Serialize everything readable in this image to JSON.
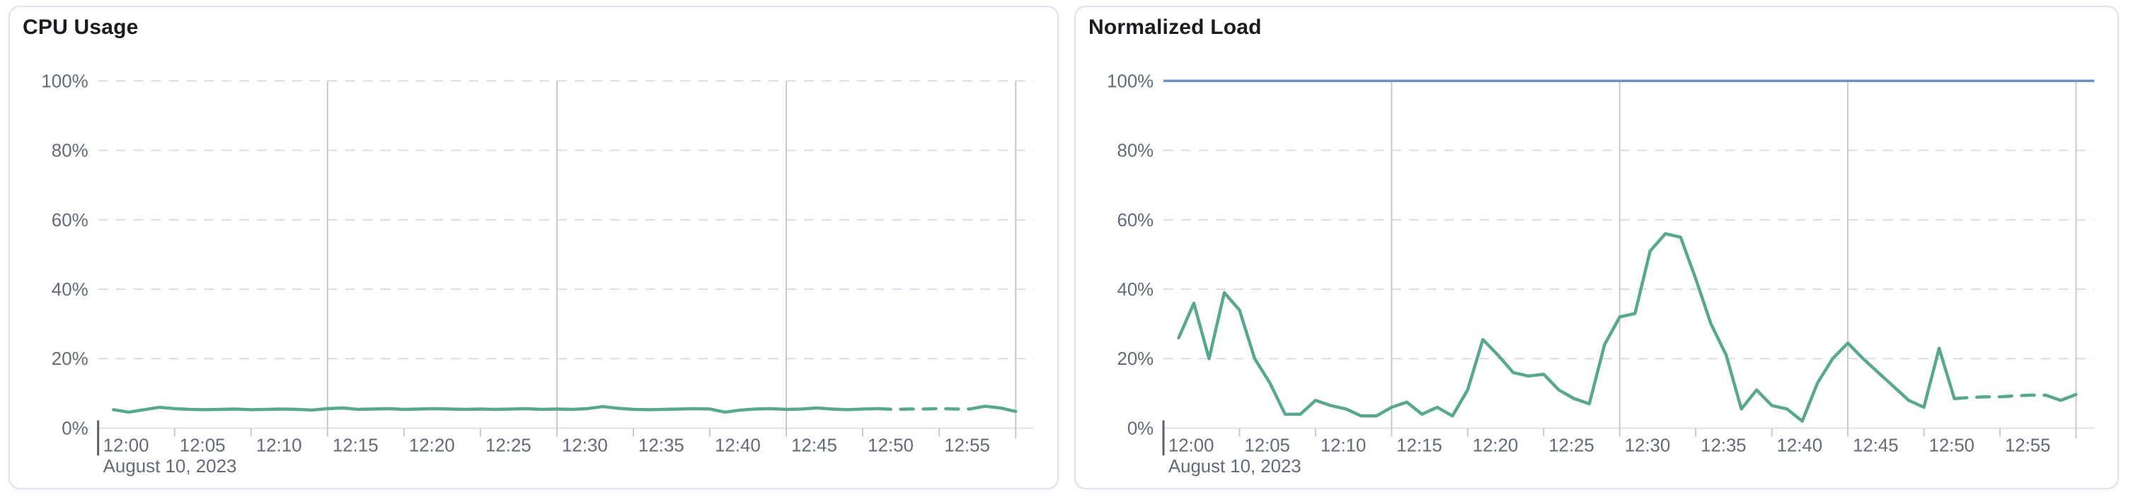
{
  "page": {
    "background": "#ffffff"
  },
  "colors": {
    "series_green": "#57A88E",
    "limit_blue": "#6A91C2",
    "grid_dashed": "#D9DDE8",
    "grid_solid": "#C6C9D0",
    "axis_line": "#E0E3EA",
    "tick": "#C6C9D0",
    "start_tick": "#5A5F6B",
    "label_text": "#646A79",
    "title_text": "#1A1C21",
    "card_border": "#DFE3EC"
  },
  "cards": [
    {
      "name": "cpu-usage",
      "title": "CPU Usage"
    },
    {
      "name": "normalized-load",
      "title": "Normalized Load"
    }
  ],
  "chart_data": [
    {
      "type": "line",
      "title": "CPU Usage",
      "x_axis_date_label": "August 10, 2023",
      "x_tick_labels": [
        "12:00",
        "12:05",
        "12:10",
        "12:15",
        "12:20",
        "12:25",
        "12:30",
        "12:35",
        "12:40",
        "12:45",
        "12:50",
        "12:55"
      ],
      "x_range_minutes": [
        0,
        60
      ],
      "x_first_point_minute": 1,
      "x_interval_minutes": 1,
      "vertical_gridline_minutes": [
        15,
        30,
        45,
        60
      ],
      "y_tick_labels": [
        "0%",
        "20%",
        "40%",
        "60%",
        "80%",
        "100%"
      ],
      "ylim": [
        0,
        100
      ],
      "grid": {
        "horizontal": "dashed every 20%",
        "vertical": "solid at 12:15, 12:30, 12:45, 13:00"
      },
      "legend": "none",
      "series": [
        {
          "name": "cpu-usage-percent",
          "color": "#57A88E",
          "style": "line",
          "dashed_minutes": [
            51,
            57
          ],
          "values": [
            5.3,
            4.6,
            5.3,
            6.0,
            5.6,
            5.4,
            5.3,
            5.4,
            5.5,
            5.3,
            5.4,
            5.5,
            5.4,
            5.2,
            5.6,
            5.8,
            5.4,
            5.5,
            5.6,
            5.4,
            5.5,
            5.6,
            5.5,
            5.4,
            5.5,
            5.4,
            5.5,
            5.6,
            5.4,
            5.5,
            5.4,
            5.6,
            6.2,
            5.7,
            5.4,
            5.3,
            5.4,
            5.5,
            5.6,
            5.5,
            4.6,
            5.2,
            5.5,
            5.6,
            5.4,
            5.5,
            5.8,
            5.5,
            5.3,
            5.5,
            5.6,
            5.4,
            5.5,
            5.5,
            5.6,
            5.5,
            5.5,
            6.3,
            5.8,
            4.8
          ]
        }
      ]
    },
    {
      "type": "line",
      "title": "Normalized Load",
      "x_axis_date_label": "August 10, 2023",
      "x_tick_labels": [
        "12:00",
        "12:05",
        "12:10",
        "12:15",
        "12:20",
        "12:25",
        "12:30",
        "12:35",
        "12:40",
        "12:45",
        "12:50",
        "12:55"
      ],
      "x_range_minutes": [
        0,
        60
      ],
      "x_first_point_minute": 1,
      "x_interval_minutes": 1,
      "vertical_gridline_minutes": [
        15,
        30,
        45,
        60
      ],
      "y_tick_labels": [
        "0%",
        "20%",
        "40%",
        "60%",
        "80%",
        "100%"
      ],
      "ylim": [
        0,
        100
      ],
      "grid": {
        "horizontal": "dashed every 20%",
        "vertical": "solid at 12:15, 12:30, 12:45, 13:00"
      },
      "legend": "none",
      "series": [
        {
          "name": "limit-100-percent",
          "color": "#6A91C2",
          "style": "constant-line",
          "constant": 100
        },
        {
          "name": "normalized-load-percent",
          "color": "#57A88E",
          "style": "line",
          "dashed_minutes": [
            52,
            58
          ],
          "values": [
            26,
            36,
            20,
            39,
            34,
            20,
            13,
            4,
            4,
            8,
            6.5,
            5.5,
            3.5,
            3.5,
            6,
            7.5,
            4,
            6,
            3.5,
            11,
            25.5,
            21,
            16,
            15,
            15.5,
            11,
            8.5,
            7,
            24,
            32,
            33,
            51,
            56,
            55,
            43,
            30,
            21,
            5.5,
            11,
            6.5,
            5.5,
            2,
            13,
            20,
            24.5,
            20,
            16,
            12,
            8,
            6,
            23,
            8.5,
            8.8,
            9,
            9,
            9.3,
            9.5,
            9.5,
            8,
            9.7
          ]
        }
      ]
    }
  ]
}
